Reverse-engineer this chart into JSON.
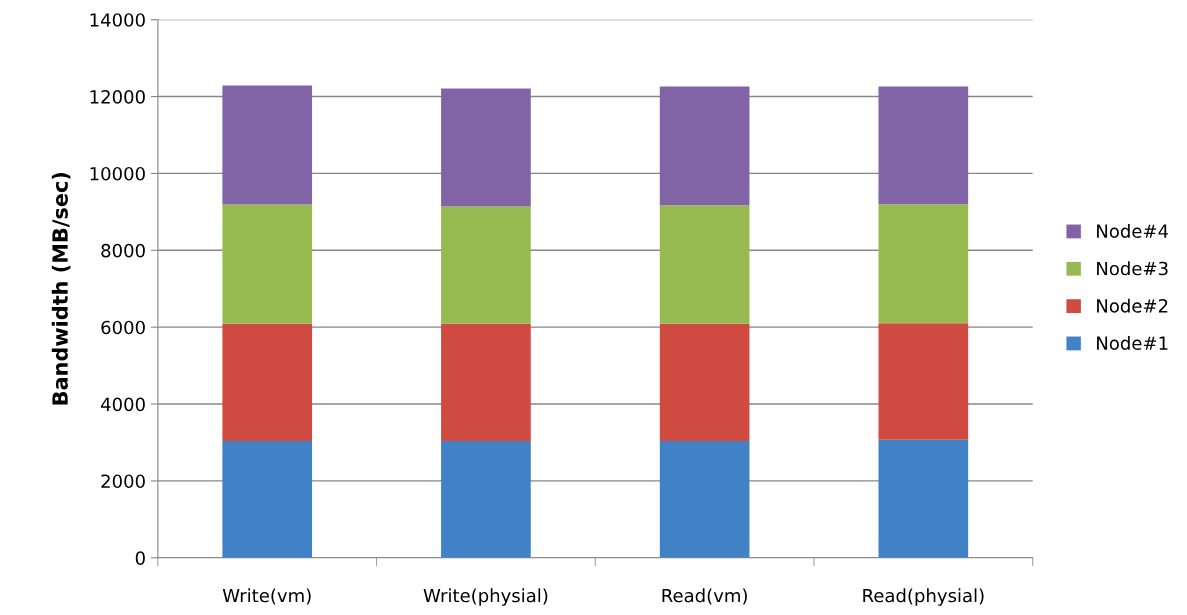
{
  "chart_data": {
    "type": "bar",
    "stacked": true,
    "ylabel": "Bandwidth (MB/sec)",
    "categories": [
      "Write(vm)",
      "Write(physial)",
      "Read(vm)",
      "Read(physial)"
    ],
    "series": [
      {
        "name": "Node#1",
        "color": "#4182c6",
        "values": [
          3040,
          3040,
          3040,
          3070
        ]
      },
      {
        "name": "Node#2",
        "color": "#cf4b41",
        "values": [
          3050,
          3050,
          3050,
          3030
        ]
      },
      {
        "name": "Node#3",
        "color": "#96ba50",
        "values": [
          3100,
          3050,
          3080,
          3100
        ]
      },
      {
        "name": "Node#4",
        "color": "#8064a6",
        "values": [
          3100,
          3070,
          3090,
          3060
        ]
      }
    ],
    "ylim": [
      0,
      14000
    ],
    "yticks": [
      0,
      2000,
      4000,
      6000,
      8000,
      10000,
      12000,
      14000
    ],
    "grid": "y",
    "legend": "right"
  }
}
